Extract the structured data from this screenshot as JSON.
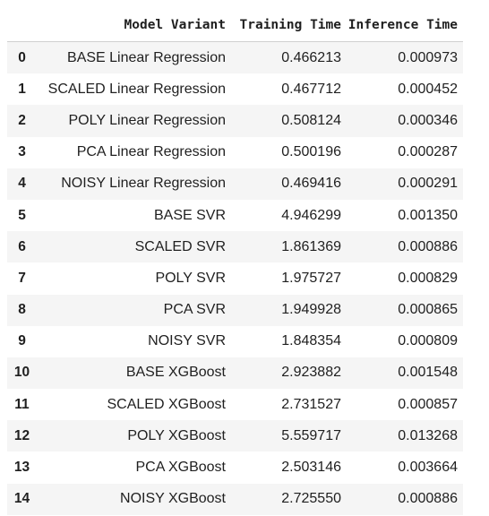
{
  "table": {
    "columns": [
      "",
      "Model Variant",
      "Training Time",
      "Inference Time"
    ],
    "rows": [
      {
        "index": "0",
        "model": "BASE Linear Regression",
        "training_time": "0.466213",
        "inference_time": "0.000973"
      },
      {
        "index": "1",
        "model": "SCALED Linear Regression",
        "training_time": "0.467712",
        "inference_time": "0.000452"
      },
      {
        "index": "2",
        "model": "POLY Linear Regression",
        "training_time": "0.508124",
        "inference_time": "0.000346"
      },
      {
        "index": "3",
        "model": "PCA Linear Regression",
        "training_time": "0.500196",
        "inference_time": "0.000287"
      },
      {
        "index": "4",
        "model": "NOISY Linear Regression",
        "training_time": "0.469416",
        "inference_time": "0.000291"
      },
      {
        "index": "5",
        "model": "BASE SVR",
        "training_time": "4.946299",
        "inference_time": "0.001350"
      },
      {
        "index": "6",
        "model": "SCALED SVR",
        "training_time": "1.861369",
        "inference_time": "0.000886"
      },
      {
        "index": "7",
        "model": "POLY SVR",
        "training_time": "1.975727",
        "inference_time": "0.000829"
      },
      {
        "index": "8",
        "model": "PCA SVR",
        "training_time": "1.949928",
        "inference_time": "0.000865"
      },
      {
        "index": "9",
        "model": "NOISY SVR",
        "training_time": "1.848354",
        "inference_time": "0.000809"
      },
      {
        "index": "10",
        "model": "BASE XGBoost",
        "training_time": "2.923882",
        "inference_time": "0.001548"
      },
      {
        "index": "11",
        "model": "SCALED XGBoost",
        "training_time": "2.731527",
        "inference_time": "0.000857"
      },
      {
        "index": "12",
        "model": "POLY XGBoost",
        "training_time": "5.559717",
        "inference_time": "0.013268"
      },
      {
        "index": "13",
        "model": "PCA XGBoost",
        "training_time": "2.503146",
        "inference_time": "0.003664"
      },
      {
        "index": "14",
        "model": "NOISY XGBoost",
        "training_time": "2.725550",
        "inference_time": "0.000886"
      }
    ]
  }
}
